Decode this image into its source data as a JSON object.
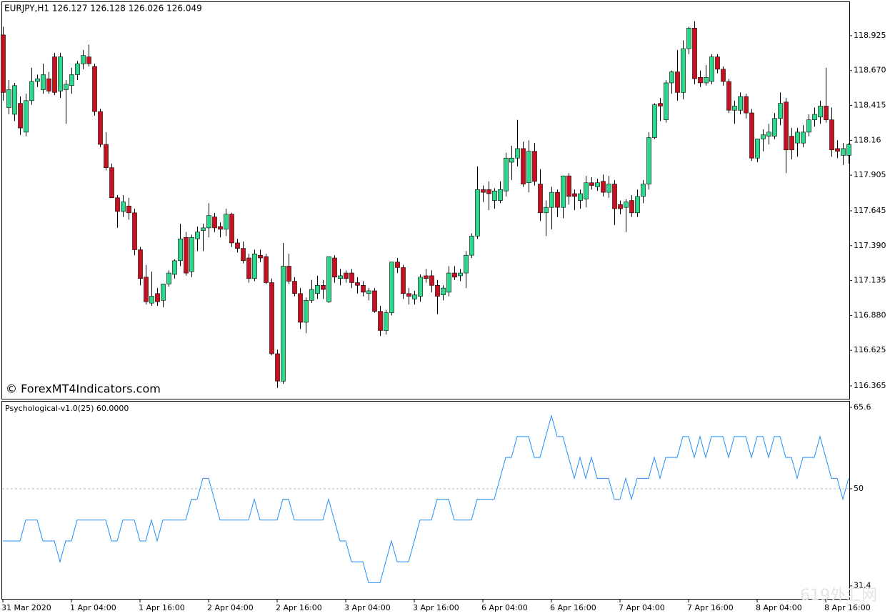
{
  "chart_data": [
    {
      "type": "candlestick",
      "title": "EURJPY,H1  126.127 126.128 126.026 126.049",
      "annotation": "© ForexMT4Indicators.com",
      "up_color": "#2fd98b",
      "down_color": "#c8101e",
      "ylim": [
        116.271,
        119.17
      ],
      "yticks": [
        118.925,
        {
          "value": 118.67,
          "label": "118.670"
        },
        118.415,
        118.16,
        117.905,
        117.645,
        {
          "value": 117.39,
          "label": "117.390"
        },
        117.135,
        {
          "value": 116.88,
          "label": "116.880"
        },
        116.625,
        116.365
      ],
      "categories": [
        "31 Mar 2020",
        null,
        null,
        null,
        null,
        null,
        null,
        null,
        null,
        null,
        null,
        null,
        "1 Apr 04:00",
        null,
        null,
        null,
        null,
        null,
        null,
        null,
        null,
        null,
        null,
        null,
        "1 Apr 16:00",
        null,
        null,
        null,
        null,
        null,
        null,
        null,
        null,
        null,
        null,
        null,
        "2 Apr 04:00",
        null,
        null,
        null,
        null,
        null,
        null,
        null,
        null,
        null,
        null,
        null,
        "2 Apr 16:00",
        null,
        null,
        null,
        null,
        null,
        null,
        null,
        null,
        null,
        null,
        null,
        "3 Apr 04:00",
        null,
        null,
        null,
        null,
        null,
        null,
        null,
        null,
        null,
        null,
        null,
        "3 Apr 16:00",
        null,
        null,
        null,
        null,
        null,
        null,
        null,
        null,
        null,
        null,
        null,
        "6 Apr 04:00",
        null,
        null,
        null,
        null,
        null,
        null,
        null,
        null,
        null,
        null,
        null,
        "6 Apr 16:00",
        null,
        null,
        null,
        null,
        null,
        null,
        null,
        null,
        null,
        null,
        null,
        "7 Apr 04:00",
        null,
        null,
        null,
        null,
        null,
        null,
        null,
        null,
        null,
        null,
        null,
        "7 Apr 16:00",
        null,
        null,
        null,
        null,
        null,
        null,
        null,
        null,
        null,
        null,
        null,
        "8 Apr 04:00",
        null,
        null,
        null,
        null,
        null,
        null,
        null,
        null,
        null,
        null,
        null,
        "8 Apr 16:00",
        null,
        null,
        null,
        null
      ],
      "open": [
        118.93,
        118.4,
        118.35,
        118.43,
        118.22,
        118.45,
        118.59,
        118.53,
        118.61,
        118.77,
        118.52,
        118.53,
        118.56,
        118.64,
        118.72,
        118.77,
        118.7,
        118.37,
        118.13,
        117.96,
        117.74,
        117.64,
        117.68,
        117.63,
        117.36,
        117.16,
        116.97,
        117.04,
        116.99,
        117.11,
        117.18,
        117.28,
        117.45,
        117.2,
        117.44,
        117.5,
        117.52,
        117.6,
        117.53,
        117.51,
        117.62,
        117.41,
        117.37,
        117.3,
        117.15,
        117.32,
        117.31,
        117.12,
        116.6,
        116.4,
        117.24,
        117.13,
        117.04,
        116.83,
        116.99,
        117.04,
        117.1,
        116.98,
        117.3,
        117.15,
        117.19,
        117.19,
        117.12,
        117.1,
        117.04,
        117.06,
        116.91,
        116.77,
        116.9,
        117.27,
        117.23,
        117.04,
        117.0,
        117.02,
        117.17,
        117.17,
        117.1,
        117.03,
        117.05,
        117.19,
        117.17,
        117.19,
        117.32,
        117.46,
        117.8,
        117.8,
        117.72,
        117.72,
        117.79,
        118.0,
        118.03,
        118.1,
        117.85,
        118.08,
        117.84,
        117.63,
        117.67,
        117.78,
        117.67,
        117.9,
        117.77,
        117.72,
        117.73,
        117.85,
        117.82,
        117.86,
        117.78,
        117.84,
        117.69,
        117.67,
        117.72,
        117.63,
        117.75,
        117.84,
        118.18,
        118.43,
        118.31,
        118.58,
        118.66,
        118.51,
        118.83,
        118.98,
        118.62,
        118.58,
        118.59,
        118.77,
        118.68,
        118.59,
        118.38,
        118.38,
        118.48,
        118.36,
        118.03,
        118.17,
        118.19,
        118.19,
        118.32,
        118.44,
        118.19,
        118.14,
        118.14,
        118.22,
        118.31,
        118.33,
        118.41,
        118.31,
        118.1,
        118.05,
        118.05
      ],
      "high": [
        118.99,
        118.6,
        118.58,
        118.48,
        118.5,
        118.69,
        118.64,
        118.72,
        118.66,
        118.8,
        118.8,
        118.6,
        118.69,
        118.74,
        118.82,
        118.86,
        118.72,
        118.39,
        118.22,
        117.99,
        117.76,
        117.76,
        117.74,
        117.66,
        117.38,
        117.25,
        117.2,
        117.08,
        117.11,
        117.21,
        117.29,
        117.55,
        117.49,
        117.47,
        117.53,
        117.55,
        117.7,
        117.63,
        117.56,
        117.66,
        117.63,
        117.44,
        117.42,
        117.33,
        117.36,
        117.36,
        117.33,
        117.15,
        116.63,
        117.41,
        117.33,
        117.16,
        117.08,
        117.01,
        117.14,
        117.17,
        117.14,
        117.31,
        117.32,
        117.22,
        117.21,
        117.22,
        117.16,
        117.13,
        117.08,
        117.08,
        116.95,
        116.92,
        117.27,
        117.3,
        117.25,
        117.08,
        117.06,
        117.18,
        117.22,
        117.21,
        117.14,
        117.1,
        117.24,
        117.24,
        117.22,
        117.35,
        117.48,
        117.97,
        117.83,
        117.86,
        117.81,
        117.86,
        118.07,
        118.12,
        118.31,
        118.15,
        118.16,
        118.14,
        117.95,
        117.72,
        117.82,
        117.8,
        117.9,
        117.92,
        117.8,
        117.8,
        117.9,
        117.89,
        117.88,
        117.91,
        117.9,
        117.87,
        117.72,
        117.73,
        117.76,
        117.8,
        117.87,
        118.22,
        118.43,
        118.47,
        118.6,
        118.67,
        118.82,
        118.89,
        118.99,
        119.03,
        118.67,
        118.71,
        118.79,
        118.79,
        118.7,
        118.61,
        118.45,
        118.51,
        118.5,
        118.39,
        118.17,
        118.24,
        118.28,
        118.36,
        118.51,
        118.47,
        118.25,
        118.25,
        118.27,
        118.35,
        118.4,
        118.45,
        118.69,
        118.4,
        118.16,
        118.14,
        118.14
      ],
      "low": [
        118.45,
        118.35,
        118.3,
        118.2,
        118.19,
        118.42,
        118.55,
        118.5,
        118.5,
        118.49,
        118.47,
        118.28,
        118.5,
        118.6,
        118.68,
        118.7,
        118.34,
        118.11,
        117.94,
        117.74,
        117.52,
        117.6,
        117.58,
        117.32,
        117.1,
        116.96,
        116.95,
        116.95,
        116.94,
        117.09,
        117.15,
        117.24,
        117.17,
        117.16,
        117.35,
        117.35,
        117.45,
        117.49,
        117.45,
        117.46,
        117.38,
        117.34,
        117.26,
        117.12,
        117.13,
        117.27,
        117.11,
        116.59,
        116.35,
        116.38,
        117.11,
        117.02,
        116.78,
        116.75,
        116.97,
        117.0,
        117.0,
        116.97,
        117.12,
        117.1,
        117.12,
        117.08,
        117.04,
        117.02,
        116.99,
        116.9,
        116.73,
        116.74,
        116.88,
        117.19,
        117.0,
        116.96,
        116.96,
        116.98,
        117.12,
        117.05,
        116.89,
        116.99,
        117.02,
        117.14,
        117.13,
        117.08,
        117.3,
        117.44,
        117.71,
        117.65,
        117.66,
        117.7,
        117.75,
        117.87,
        117.97,
        117.82,
        117.78,
        117.83,
        117.57,
        117.46,
        117.51,
        117.6,
        117.59,
        117.69,
        117.65,
        117.66,
        117.67,
        117.8,
        117.79,
        117.75,
        117.74,
        117.54,
        117.62,
        117.49,
        117.6,
        117.6,
        117.7,
        117.8,
        118.17,
        118.3,
        118.29,
        118.5,
        118.45,
        118.46,
        118.79,
        118.57,
        118.55,
        118.56,
        118.57,
        118.65,
        118.56,
        118.36,
        118.28,
        118.35,
        118.32,
        118.01,
        118.0,
        118.08,
        118.13,
        118.17,
        118.27,
        117.92,
        118.02,
        118.04,
        118.11,
        118.19,
        118.26,
        118.28,
        118.29,
        118.04,
        118.03,
        117.98,
        117.99
      ],
      "close": [
        118.51,
        118.53,
        118.56,
        118.25,
        118.45,
        118.59,
        118.61,
        118.64,
        118.52,
        118.51,
        118.77,
        118.57,
        118.64,
        118.72,
        118.78,
        118.72,
        118.37,
        118.13,
        117.96,
        117.74,
        117.64,
        117.71,
        117.63,
        117.36,
        117.15,
        116.98,
        117.02,
        116.98,
        117.11,
        117.19,
        117.28,
        117.44,
        117.19,
        117.45,
        117.49,
        117.52,
        117.61,
        117.52,
        117.51,
        117.62,
        117.41,
        117.37,
        117.28,
        117.15,
        117.33,
        117.3,
        117.12,
        116.6,
        116.4,
        117.24,
        117.13,
        117.04,
        116.83,
        116.99,
        117.07,
        117.1,
        117.07,
        117.31,
        117.16,
        117.17,
        117.15,
        117.12,
        117.1,
        117.05,
        117.06,
        116.91,
        116.77,
        116.9,
        117.27,
        117.23,
        117.04,
        117.02,
        117.03,
        117.16,
        117.15,
        117.1,
        117.02,
        117.08,
        117.19,
        117.16,
        117.19,
        117.32,
        117.46,
        117.8,
        117.78,
        117.77,
        117.79,
        117.8,
        118.03,
        118.03,
        118.1,
        117.84,
        118.08,
        117.86,
        117.63,
        117.67,
        117.78,
        117.67,
        117.9,
        117.75,
        117.75,
        117.77,
        117.85,
        117.83,
        117.85,
        117.78,
        117.84,
        117.66,
        117.66,
        117.71,
        117.63,
        117.75,
        117.84,
        118.18,
        118.42,
        118.41,
        118.58,
        118.66,
        118.51,
        118.83,
        118.98,
        118.61,
        118.58,
        118.62,
        118.77,
        118.68,
        118.59,
        118.38,
        118.41,
        118.48,
        118.36,
        118.03,
        118.17,
        118.2,
        118.22,
        118.32,
        118.43,
        118.09,
        118.09,
        118.22,
        118.22,
        118.31,
        118.35,
        118.41,
        118.31,
        118.09,
        118.08,
        118.1,
        118.13
      ]
    },
    {
      "type": "line",
      "title": "Psychological-v1.0(25) 60.0000",
      "watermark": "619外汇网",
      "ylim": [
        28.9,
        66.7
      ],
      "yticks": [
        65.6,
        50,
        31.4
      ],
      "level": 50,
      "series": [
        {
          "color": "#1e8fff",
          "values": [
            40,
            40,
            40,
            40,
            44,
            44,
            44,
            40,
            40,
            40,
            36,
            40,
            40,
            44,
            44,
            44,
            44,
            44,
            44,
            40,
            40,
            44,
            44,
            44,
            40,
            40,
            44,
            40,
            44,
            44,
            44,
            44,
            44,
            48,
            48,
            52,
            52,
            48,
            44,
            44,
            44,
            44,
            44,
            44,
            48,
            44,
            44,
            44,
            44,
            48,
            48,
            44,
            44,
            44,
            44,
            44,
            44,
            48,
            44,
            40,
            40,
            36,
            36,
            36,
            32,
            32,
            32,
            36,
            40,
            36,
            36,
            36,
            40,
            44,
            44,
            44,
            48,
            48,
            48,
            44,
            44,
            44,
            44,
            48,
            48,
            48,
            48,
            52,
            56,
            56,
            60,
            60,
            60,
            56,
            56,
            60,
            64,
            60,
            60,
            56,
            52,
            56,
            52,
            56,
            52,
            52,
            52,
            48,
            48,
            52,
            48,
            52,
            52,
            52,
            56,
            52,
            56,
            56,
            56,
            60,
            60,
            56,
            60,
            56,
            60,
            60,
            60,
            56,
            60,
            60,
            60,
            56,
            60,
            60,
            56,
            60,
            60,
            56,
            56,
            52,
            56,
            56,
            56,
            60,
            56,
            52,
            52,
            48,
            52
          ]
        }
      ]
    }
  ]
}
